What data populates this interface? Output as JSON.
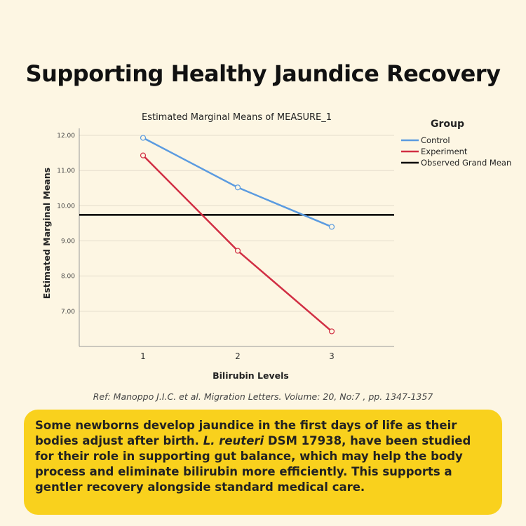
{
  "headline": "Supporting Healthy Jaundice Recovery",
  "chart_data": {
    "type": "line",
    "title": "Estimated Marginal Means of MEASURE_1",
    "xlabel": "Bilirubin Levels",
    "ylabel": "Estimated Marginal Means",
    "categories": [
      "1",
      "2",
      "3"
    ],
    "yticks": [
      "7.00",
      "8.00",
      "9.00",
      "10.00",
      "11.00",
      "12.00"
    ],
    "ylim": [
      6.0,
      12.2
    ],
    "grid": true,
    "legend_title": "Group",
    "legend_position": "right",
    "series": [
      {
        "name": "Control",
        "values": [
          11.93,
          10.52,
          9.4
        ],
        "color": "#5b9be0"
      },
      {
        "name": "Experiment",
        "values": [
          11.43,
          8.72,
          6.43
        ],
        "color": "#d12f44"
      }
    ],
    "reference_line": {
      "name": "Observed Grand Mean",
      "value": 9.74,
      "color": "#000000"
    }
  },
  "reference": "Ref: Manoppo J.I.C. et al. Migration Letters. Volume: 20, No:7 , pp. 1347-1357",
  "callout": {
    "part1": "Some newborns develop jaundice in the first days of life as their bodies adjust after birth. ",
    "italic": "L. reuteri",
    "part2": " DSM 17938, have been studied for their role in supporting gut balance, which may help the body process and eliminate bilirubin more efficiently. This supports a gentler recovery alongside standard medical care."
  }
}
